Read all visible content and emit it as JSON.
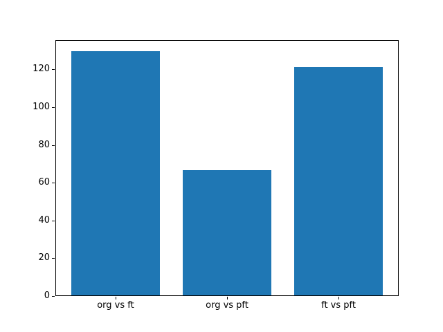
{
  "chart_data": {
    "type": "bar",
    "categories": [
      "org vs ft",
      "org vs pft",
      "ft vs pft"
    ],
    "values": [
      129.6,
      66.5,
      121.3
    ],
    "x_positions": [
      0,
      1,
      2
    ],
    "bar_width": 0.8,
    "xlim": [
      -0.54,
      2.54
    ],
    "ylim": [
      0,
      135.5
    ],
    "yticks": [
      0,
      20,
      40,
      60,
      80,
      100,
      120
    ],
    "grid": false,
    "legend": false,
    "bar_color": "#1f77b4",
    "background_color": "#ffffff",
    "spine_color": "#000000",
    "tick_label_color": "#000000"
  }
}
